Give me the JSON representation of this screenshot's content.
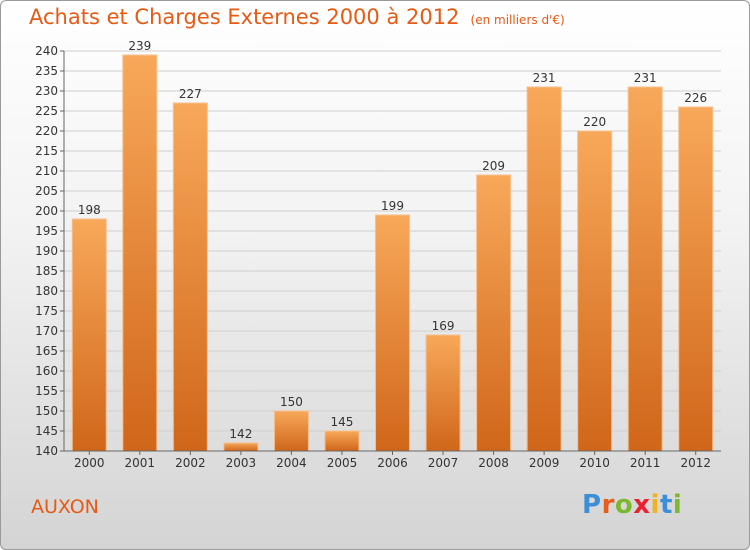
{
  "header": {
    "title": "Achats et Charges Externes 2000 à 2012",
    "unit_note": "(en milliers d'€)"
  },
  "commune_name": "AUXON",
  "logo": {
    "text": "Proxiti",
    "letters": [
      {
        "ch": "P",
        "color": "#3a8fd8"
      },
      {
        "ch": "r",
        "color": "#e85c1e"
      },
      {
        "ch": "o",
        "color": "#7cb82f"
      },
      {
        "ch": "x",
        "color": "#e8232f"
      },
      {
        "ch": "i",
        "color": "#f2b21b"
      },
      {
        "ch": "t",
        "color": "#3a8fd8"
      },
      {
        "ch": "i",
        "color": "#7cb82f"
      }
    ]
  },
  "colors": {
    "title": "#e65a14",
    "bar_top": "#f8a85a",
    "bar_bottom": "#d0661a",
    "grid": "#cfcfcf"
  },
  "chart_data": {
    "type": "bar",
    "title": "Achats et Charges Externes 2000 à 2012",
    "subtitle": "(en milliers d'€)",
    "xlabel": "",
    "ylabel": "",
    "categories": [
      "2000",
      "2001",
      "2002",
      "2003",
      "2004",
      "2005",
      "2006",
      "2007",
      "2008",
      "2009",
      "2010",
      "2011",
      "2012"
    ],
    "values": [
      198,
      239,
      227,
      142,
      150,
      145,
      199,
      169,
      209,
      231,
      220,
      231,
      226
    ],
    "ylim": [
      140,
      240
    ],
    "ytick_step": 5,
    "grid": true,
    "legend": "none"
  }
}
